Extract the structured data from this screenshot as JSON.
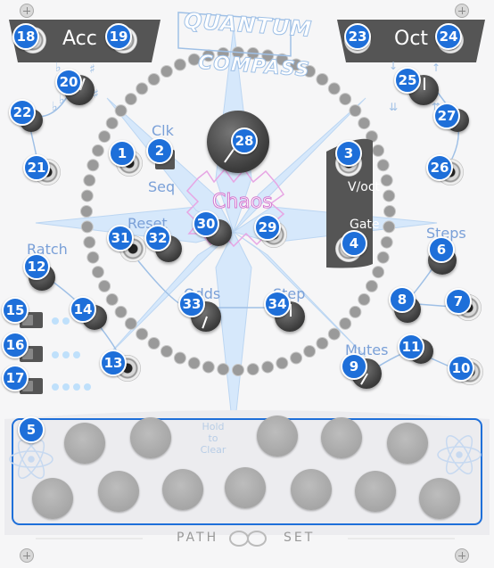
{
  "module": {
    "brand_line1": "QUANTUM",
    "brand_line2": "COMPASS",
    "footer_left": "PATH",
    "footer_right": "SET"
  },
  "labels": {
    "acc": "Acc",
    "oct": "Oct",
    "clk": "Clk",
    "seq": "Seq",
    "chaos": "Chaos",
    "voct": "V/oct",
    "gate": "Gate",
    "reset": "Reset",
    "ratch": "Ratch",
    "steps": "Steps",
    "odds": "Odds",
    "step": "Step",
    "mutes": "Mutes",
    "hold_to_clear": "Hold to Clear"
  },
  "badges": [
    "1",
    "2",
    "3",
    "4",
    "5",
    "6",
    "7",
    "8",
    "9",
    "10",
    "11",
    "12",
    "13",
    "14",
    "15",
    "16",
    "17",
    "18",
    "19",
    "20",
    "21",
    "22",
    "23",
    "24",
    "25",
    "26",
    "27",
    "28",
    "29",
    "30",
    "31",
    "32",
    "33",
    "34"
  ],
  "colors": {
    "badge": "#1e6fd9",
    "label": "#7aa0d8",
    "panel": "#f6f6f7",
    "header": "#555555",
    "led": "#bfe0fb"
  }
}
